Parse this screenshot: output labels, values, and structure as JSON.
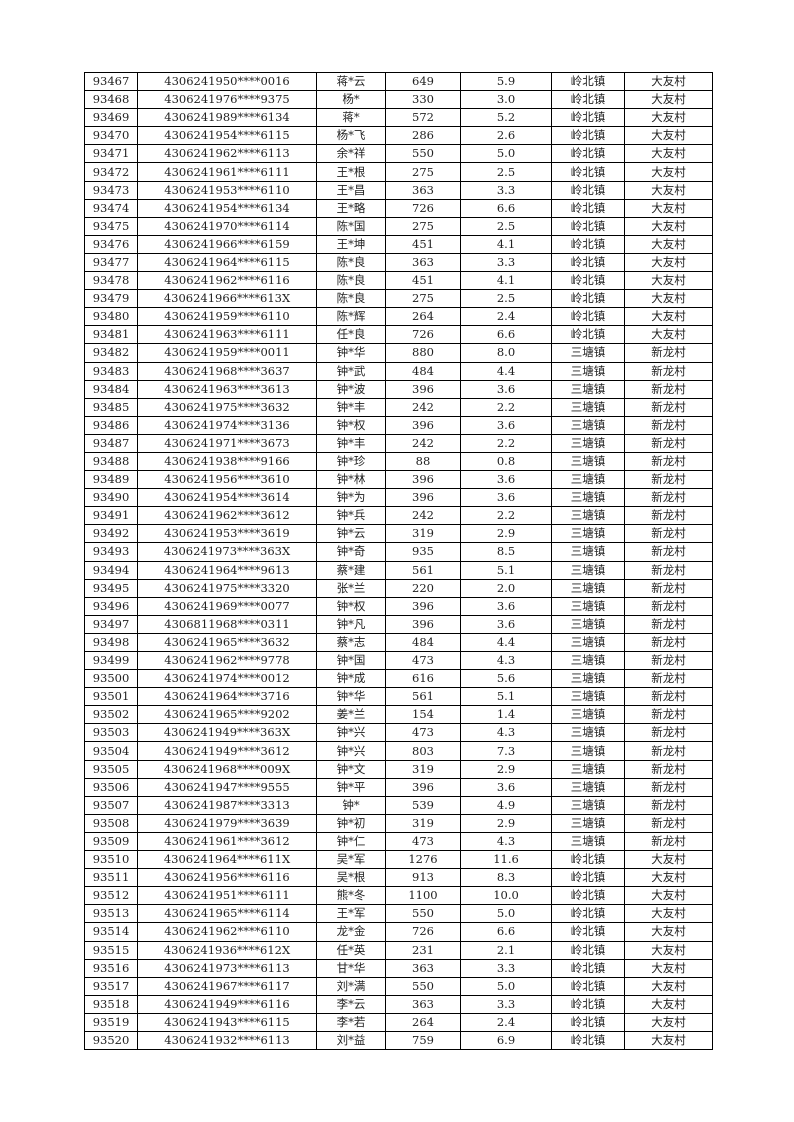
{
  "table": {
    "rows": [
      [
        "93467",
        "4306241950****0016",
        "蒋*云",
        "649",
        "5.9",
        "岭北镇",
        "大友村"
      ],
      [
        "93468",
        "4306241976****9375",
        "杨*",
        "330",
        "3.0",
        "岭北镇",
        "大友村"
      ],
      [
        "93469",
        "4306241989****6134",
        "蒋*",
        "572",
        "5.2",
        "岭北镇",
        "大友村"
      ],
      [
        "93470",
        "4306241954****6115",
        "杨*飞",
        "286",
        "2.6",
        "岭北镇",
        "大友村"
      ],
      [
        "93471",
        "4306241962****6113",
        "余*祥",
        "550",
        "5.0",
        "岭北镇",
        "大友村"
      ],
      [
        "93472",
        "4306241961****6111",
        "王*根",
        "275",
        "2.5",
        "岭北镇",
        "大友村"
      ],
      [
        "93473",
        "4306241953****6110",
        "王*昌",
        "363",
        "3.3",
        "岭北镇",
        "大友村"
      ],
      [
        "93474",
        "4306241954****6134",
        "王*略",
        "726",
        "6.6",
        "岭北镇",
        "大友村"
      ],
      [
        "93475",
        "4306241970****6114",
        "陈*国",
        "275",
        "2.5",
        "岭北镇",
        "大友村"
      ],
      [
        "93476",
        "4306241966****6159",
        "王*坤",
        "451",
        "4.1",
        "岭北镇",
        "大友村"
      ],
      [
        "93477",
        "4306241964****6115",
        "陈*良",
        "363",
        "3.3",
        "岭北镇",
        "大友村"
      ],
      [
        "93478",
        "4306241962****6116",
        "陈*良",
        "451",
        "4.1",
        "岭北镇",
        "大友村"
      ],
      [
        "93479",
        "4306241966****613X",
        "陈*良",
        "275",
        "2.5",
        "岭北镇",
        "大友村"
      ],
      [
        "93480",
        "4306241959****6110",
        "陈*辉",
        "264",
        "2.4",
        "岭北镇",
        "大友村"
      ],
      [
        "93481",
        "4306241963****6111",
        "任*良",
        "726",
        "6.6",
        "岭北镇",
        "大友村"
      ],
      [
        "93482",
        "4306241959****0011",
        "钟*华",
        "880",
        "8.0",
        "三塘镇",
        "新龙村"
      ],
      [
        "93483",
        "4306241968****3637",
        "钟*武",
        "484",
        "4.4",
        "三塘镇",
        "新龙村"
      ],
      [
        "93484",
        "4306241963****3613",
        "钟*波",
        "396",
        "3.6",
        "三塘镇",
        "新龙村"
      ],
      [
        "93485",
        "4306241975****3632",
        "钟*丰",
        "242",
        "2.2",
        "三塘镇",
        "新龙村"
      ],
      [
        "93486",
        "4306241974****3136",
        "钟*权",
        "396",
        "3.6",
        "三塘镇",
        "新龙村"
      ],
      [
        "93487",
        "4306241971****3673",
        "钟*丰",
        "242",
        "2.2",
        "三塘镇",
        "新龙村"
      ],
      [
        "93488",
        "4306241938****9166",
        "钟*珍",
        "88",
        "0.8",
        "三塘镇",
        "新龙村"
      ],
      [
        "93489",
        "4306241956****3610",
        "钟*林",
        "396",
        "3.6",
        "三塘镇",
        "新龙村"
      ],
      [
        "93490",
        "4306241954****3614",
        "钟*为",
        "396",
        "3.6",
        "三塘镇",
        "新龙村"
      ],
      [
        "93491",
        "4306241962****3612",
        "钟*兵",
        "242",
        "2.2",
        "三塘镇",
        "新龙村"
      ],
      [
        "93492",
        "4306241953****3619",
        "钟*云",
        "319",
        "2.9",
        "三塘镇",
        "新龙村"
      ],
      [
        "93493",
        "4306241973****363X",
        "钟*奇",
        "935",
        "8.5",
        "三塘镇",
        "新龙村"
      ],
      [
        "93494",
        "4306241964****9613",
        "蔡*建",
        "561",
        "5.1",
        "三塘镇",
        "新龙村"
      ],
      [
        "93495",
        "4306241975****3320",
        "张*兰",
        "220",
        "2.0",
        "三塘镇",
        "新龙村"
      ],
      [
        "93496",
        "4306241969****0077",
        "钟*权",
        "396",
        "3.6",
        "三塘镇",
        "新龙村"
      ],
      [
        "93497",
        "4306811968****0311",
        "钟*凡",
        "396",
        "3.6",
        "三塘镇",
        "新龙村"
      ],
      [
        "93498",
        "4306241965****3632",
        "蔡*志",
        "484",
        "4.4",
        "三塘镇",
        "新龙村"
      ],
      [
        "93499",
        "4306241962****9778",
        "钟*国",
        "473",
        "4.3",
        "三塘镇",
        "新龙村"
      ],
      [
        "93500",
        "4306241974****0012",
        "钟*成",
        "616",
        "5.6",
        "三塘镇",
        "新龙村"
      ],
      [
        "93501",
        "4306241964****3716",
        "钟*华",
        "561",
        "5.1",
        "三塘镇",
        "新龙村"
      ],
      [
        "93502",
        "4306241965****9202",
        "姜*兰",
        "154",
        "1.4",
        "三塘镇",
        "新龙村"
      ],
      [
        "93503",
        "4306241949****363X",
        "钟*兴",
        "473",
        "4.3",
        "三塘镇",
        "新龙村"
      ],
      [
        "93504",
        "4306241949****3612",
        "钟*兴",
        "803",
        "7.3",
        "三塘镇",
        "新龙村"
      ],
      [
        "93505",
        "4306241968****009X",
        "钟*文",
        "319",
        "2.9",
        "三塘镇",
        "新龙村"
      ],
      [
        "93506",
        "4306241947****9555",
        "钟*平",
        "396",
        "3.6",
        "三塘镇",
        "新龙村"
      ],
      [
        "93507",
        "4306241987****3313",
        "钟*",
        "539",
        "4.9",
        "三塘镇",
        "新龙村"
      ],
      [
        "93508",
        "4306241979****3639",
        "钟*初",
        "319",
        "2.9",
        "三塘镇",
        "新龙村"
      ],
      [
        "93509",
        "4306241961****3612",
        "钟*仁",
        "473",
        "4.3",
        "三塘镇",
        "新龙村"
      ],
      [
        "93510",
        "4306241964****611X",
        "吴*军",
        "1276",
        "11.6",
        "岭北镇",
        "大友村"
      ],
      [
        "93511",
        "4306241956****6116",
        "吴*根",
        "913",
        "8.3",
        "岭北镇",
        "大友村"
      ],
      [
        "93512",
        "4306241951****6111",
        "熊*冬",
        "1100",
        "10.0",
        "岭北镇",
        "大友村"
      ],
      [
        "93513",
        "4306241965****6114",
        "王*军",
        "550",
        "5.0",
        "岭北镇",
        "大友村"
      ],
      [
        "93514",
        "4306241962****6110",
        "龙*金",
        "726",
        "6.6",
        "岭北镇",
        "大友村"
      ],
      [
        "93515",
        "4306241936****612X",
        "任*英",
        "231",
        "2.1",
        "岭北镇",
        "大友村"
      ],
      [
        "93516",
        "4306241973****6113",
        "甘*华",
        "363",
        "3.3",
        "岭北镇",
        "大友村"
      ],
      [
        "93517",
        "4306241967****6117",
        "刘*满",
        "550",
        "5.0",
        "岭北镇",
        "大友村"
      ],
      [
        "93518",
        "4306241949****6116",
        "李*云",
        "363",
        "3.3",
        "岭北镇",
        "大友村"
      ],
      [
        "93519",
        "4306241943****6115",
        "李*若",
        "264",
        "2.4",
        "岭北镇",
        "大友村"
      ],
      [
        "93520",
        "4306241932****6113",
        "刘*益",
        "759",
        "6.9",
        "岭北镇",
        "大友村"
      ]
    ]
  }
}
